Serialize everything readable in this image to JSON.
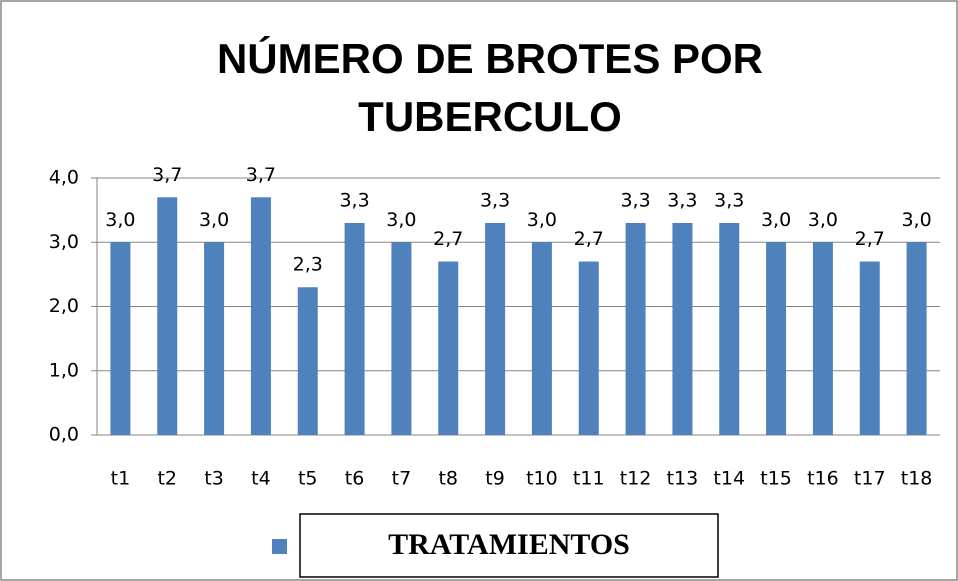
{
  "chart_data": {
    "type": "bar",
    "title": "NÚMERO DE BROTES POR TUBERCULO",
    "categories": [
      "t1",
      "t2",
      "t3",
      "t4",
      "t5",
      "t6",
      "t7",
      "t8",
      "t9",
      "t10",
      "t11",
      "t12",
      "t13",
      "t14",
      "t15",
      "t16",
      "t17",
      "t18"
    ],
    "series": [
      {
        "name": "TRATAMIENTOS",
        "color": "#4f81bd",
        "values": [
          3.0,
          3.7,
          3.0,
          3.7,
          2.3,
          3.3,
          3.0,
          2.7,
          3.3,
          3.0,
          2.7,
          3.3,
          3.3,
          3.3,
          3.0,
          3.0,
          2.7,
          3.0
        ],
        "value_labels": [
          "3,0",
          "3,7",
          "3,0",
          "3,7",
          "2,3",
          "3,3",
          "3,0",
          "2,7",
          "3,3",
          "3,0",
          "2,7",
          "3,3",
          "3,3",
          "3,3",
          "3,0",
          "3,0",
          "2,7",
          "3,0"
        ]
      }
    ],
    "ylim": [
      0,
      4
    ],
    "yticks": [
      {
        "value": 0,
        "label": "0,0"
      },
      {
        "value": 1,
        "label": "1,0"
      },
      {
        "value": 2,
        "label": "2,0"
      },
      {
        "value": 3,
        "label": "3,0"
      },
      {
        "value": 4,
        "label": "4,0"
      }
    ],
    "grid": true
  }
}
